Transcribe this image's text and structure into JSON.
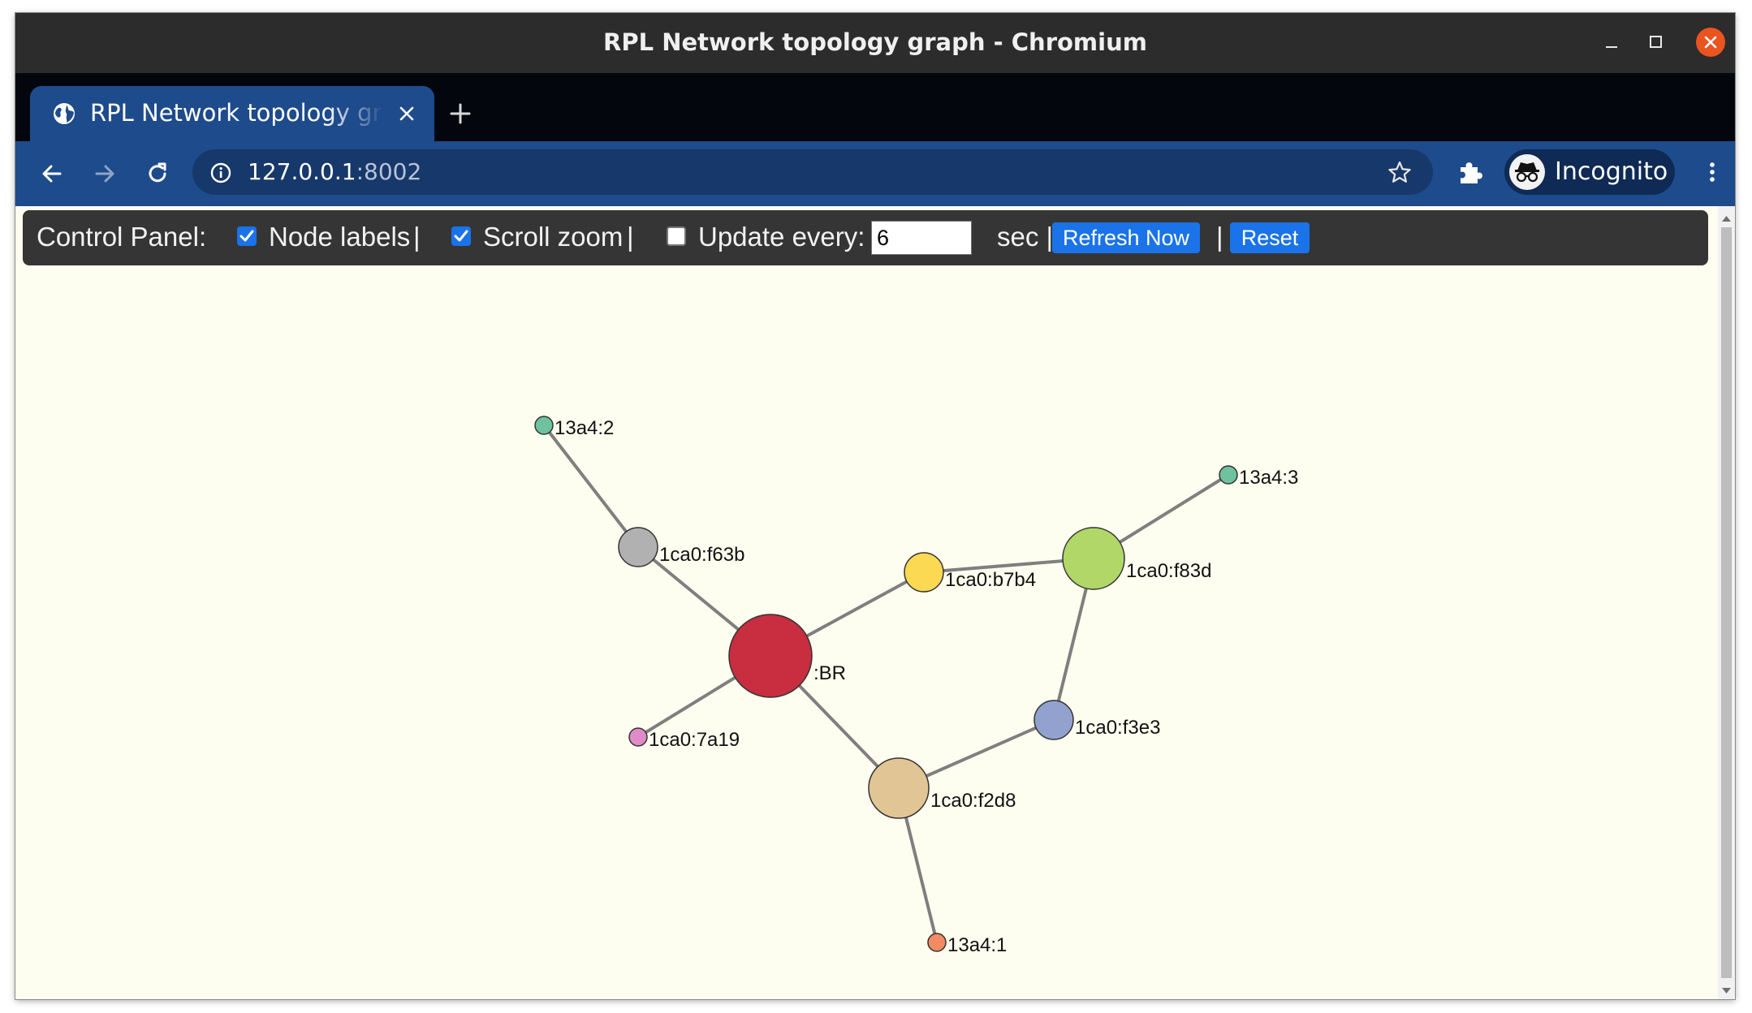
{
  "window": {
    "title": "RPL Network topology graph - Chromium"
  },
  "tab": {
    "title": "RPL Network topology graph"
  },
  "address_bar": {
    "host": "127.0.0.1",
    "port": ":8002"
  },
  "profile": {
    "label": "Incognito"
  },
  "control_panel": {
    "title": "Control Panel:",
    "node_labels": {
      "label": "Node labels",
      "checked": true
    },
    "sep1": "|",
    "scroll_zoom": {
      "label": "Scroll zoom",
      "checked": true
    },
    "sep2": "|",
    "update_every": {
      "label": "Update every:",
      "checked": false,
      "value": "6"
    },
    "unit": "sec |",
    "refresh_label": "Refresh Now",
    "sep3": "|",
    "reset_label": "Reset",
    "accent_color": "#1a73e8"
  },
  "graph": {
    "link_color": "#7f7f7f",
    "nodes": [
      {
        "id": "br",
        "label": ":BR",
        "color": "#c82d40"
      },
      {
        "id": "f63b",
        "label": "1ca0:f63b",
        "color": "#b1b1b1"
      },
      {
        "id": "b7b4",
        "label": "1ca0:b7b4",
        "color": "#fcd952"
      },
      {
        "id": "f83d",
        "label": "1ca0:f83d",
        "color": "#b0d767"
      },
      {
        "id": "f3e3",
        "label": "1ca0:f3e3",
        "color": "#92a1ce"
      },
      {
        "id": "f2d8",
        "label": "1ca0:f2d8",
        "color": "#e1c595"
      },
      {
        "id": "7a19",
        "label": "1ca0:7a19",
        "color": "#de8bc7"
      },
      {
        "id": "a4_2",
        "label": "13a4:2",
        "color": "#6ec39e"
      },
      {
        "id": "a4_3",
        "label": "13a4:3",
        "color": "#6ec39e"
      },
      {
        "id": "a4_1",
        "label": "13a4:1",
        "color": "#f28a62"
      }
    ],
    "links": [
      [
        "a4_2",
        "f63b"
      ],
      [
        "f63b",
        "br"
      ],
      [
        "br",
        "b7b4"
      ],
      [
        "b7b4",
        "f83d"
      ],
      [
        "f83d",
        "a4_3"
      ],
      [
        "f83d",
        "f3e3"
      ],
      [
        "f3e3",
        "f2d8"
      ],
      [
        "br",
        "f2d8"
      ],
      [
        "br",
        "7a19"
      ],
      [
        "f2d8",
        "a4_1"
      ]
    ]
  },
  "icons": {
    "tab": "globe-icon",
    "close_tab": "close-icon",
    "new_tab": "plus-icon",
    "back": "arrow-left-icon",
    "forward": "arrow-right-icon",
    "reload": "reload-icon",
    "site_info": "info-icon",
    "bookmark": "star-icon",
    "extensions": "puzzle-icon",
    "incognito": "incognito-icon",
    "menu": "kebab-menu-icon",
    "minimize": "minimize-icon",
    "maximize": "maximize-icon",
    "close_window": "close-window-icon"
  }
}
